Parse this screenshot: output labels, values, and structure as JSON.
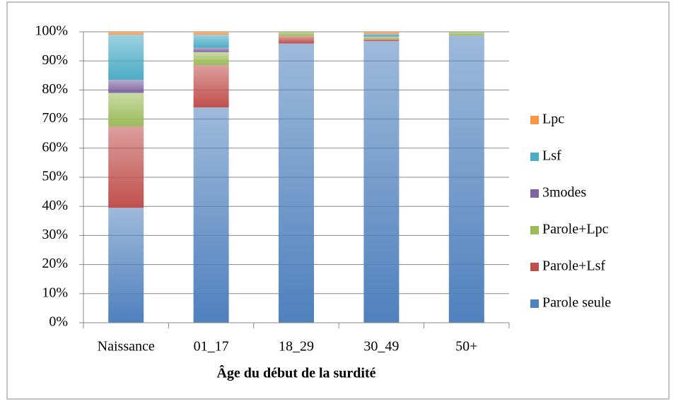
{
  "chart_data": {
    "type": "stacked_bar",
    "xlabel": "Âge du début de la surdité",
    "categories": [
      "Naissance",
      "01_17",
      "18_29",
      "30_49",
      "50+"
    ],
    "series": [
      {
        "name": "Parole seule",
        "color": "#4f81bd",
        "values": [
          39.5,
          74,
          96,
          96.8,
          98.7
        ]
      },
      {
        "name": "Parole+Lsf",
        "color": "#c0504d",
        "values": [
          28,
          14.5,
          2.5,
          0.7,
          0
        ]
      },
      {
        "name": "Parole+Lpc",
        "color": "#9bbb59",
        "values": [
          11.5,
          4.5,
          1.5,
          0.8,
          1.3
        ]
      },
      {
        "name": "3modes",
        "color": "#8064a2",
        "values": [
          4.5,
          1.5,
          0,
          0.2,
          0
        ]
      },
      {
        "name": "Lsf",
        "color": "#4bacc6",
        "values": [
          15.5,
          4.5,
          0,
          0.8,
          0
        ]
      },
      {
        "name": "Lpc",
        "color": "#f79646",
        "values": [
          1,
          1,
          0,
          0.7,
          0
        ]
      }
    ],
    "ylim": [
      0,
      100
    ],
    "yticks": [
      {
        "value": 0,
        "label": "0%"
      },
      {
        "value": 10,
        "label": "10%"
      },
      {
        "value": 20,
        "label": "20%"
      },
      {
        "value": 30,
        "label": "30%"
      },
      {
        "value": 40,
        "label": "40%"
      },
      {
        "value": 50,
        "label": "50%"
      },
      {
        "value": 60,
        "label": "60%"
      },
      {
        "value": 70,
        "label": "70%"
      },
      {
        "value": 80,
        "label": "80%"
      },
      {
        "value": 90,
        "label": "90%"
      },
      {
        "value": 100,
        "label": "100%"
      }
    ],
    "grid": true,
    "legend": "right"
  }
}
